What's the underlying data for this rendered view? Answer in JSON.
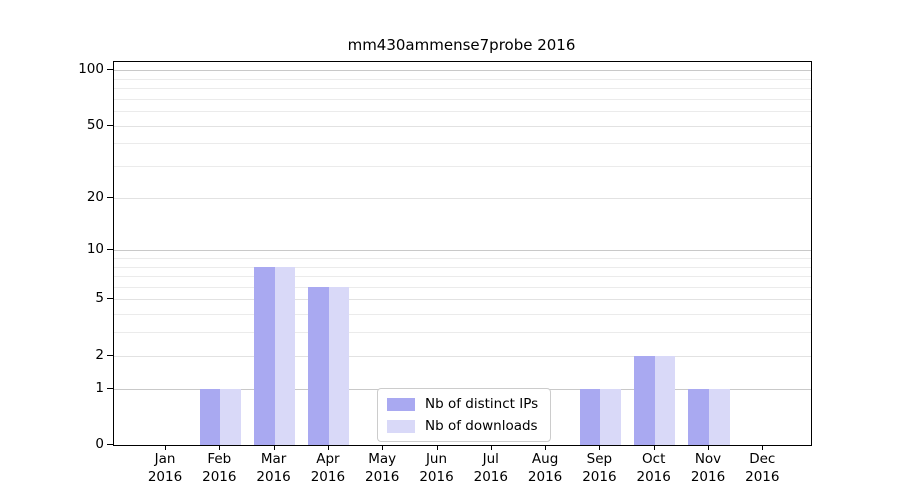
{
  "chart_data": {
    "type": "bar",
    "title": "mm430ammense7probe 2016",
    "year_label": "2016",
    "categories": [
      "Jan",
      "Feb",
      "Mar",
      "Apr",
      "May",
      "Jun",
      "Jul",
      "Aug",
      "Sep",
      "Oct",
      "Nov",
      "Dec"
    ],
    "series": [
      {
        "name": "Nb of distinct IPs",
        "color": "#a9a9f1",
        "values": [
          0,
          1,
          8,
          6,
          0,
          0,
          0,
          0,
          1,
          2,
          1,
          0
        ]
      },
      {
        "name": "Nb of downloads",
        "color": "#d9d9f8",
        "values": [
          0,
          1,
          8,
          6,
          0,
          0,
          0,
          0,
          1,
          2,
          1,
          0
        ]
      }
    ],
    "yscale": "log1p",
    "ylim": [
      0,
      100
    ],
    "ytick_values": [
      0,
      1,
      2,
      5,
      10,
      20,
      50,
      100
    ],
    "decade_grid_values": [
      1,
      10,
      100
    ],
    "mid_grid_values": [
      2,
      5,
      20,
      50
    ],
    "minor_grid_values": [
      3,
      4,
      6,
      7,
      8,
      9,
      30,
      40,
      60,
      70,
      80,
      90
    ],
    "grid": "horizontal",
    "legend": {
      "position": "inside-bottom-center",
      "entries": [
        "Nb of distinct IPs",
        "Nb of downloads"
      ]
    },
    "colors": {
      "bar_distinct_ips": "#a9a9f1",
      "bar_downloads": "#d9d9f8",
      "grid_decade": "#c9c9c9",
      "grid_mid": "#e2e2e2",
      "grid_minor": "#ebebeb",
      "axis": "#000000",
      "background": "#ffffff"
    }
  }
}
